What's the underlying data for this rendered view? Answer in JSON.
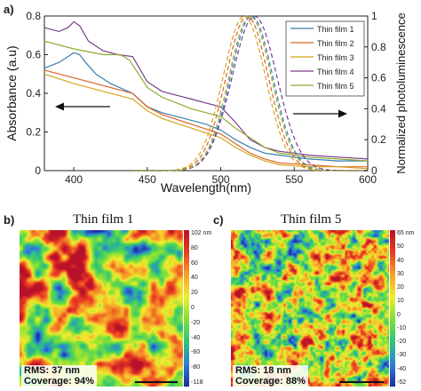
{
  "panel_a": {
    "label": "a)",
    "chart_data": {
      "type": "line",
      "xlabel": "Wavelength(nm)",
      "ylabel_left": "Absorbance (a.u)",
      "ylabel_right": "Normalized photoluminescence",
      "xlim": [
        380,
        600
      ],
      "ylim_left": [
        0,
        0.8
      ],
      "ylim_right": [
        0,
        1
      ],
      "x_ticks": [
        400,
        450,
        500,
        550,
        600
      ],
      "y_ticks_left": [
        0,
        0.2,
        0.4,
        0.6,
        0.8
      ],
      "y_ticks_right": [
        0,
        0.2,
        0.4,
        0.6,
        0.8,
        1
      ],
      "grid": false,
      "legend_position": "top-right",
      "absorbance_series": [
        {
          "name": "Thin film 1",
          "color": "#3a7fae",
          "x": [
            380,
            390,
            396,
            400,
            404,
            408,
            415,
            425,
            440,
            450,
            460,
            470,
            480,
            490,
            500,
            510,
            520,
            530,
            540,
            550,
            560,
            580,
            600
          ],
          "y": [
            0.53,
            0.56,
            0.59,
            0.61,
            0.6,
            0.56,
            0.5,
            0.45,
            0.4,
            0.33,
            0.3,
            0.28,
            0.26,
            0.24,
            0.21,
            0.16,
            0.12,
            0.09,
            0.08,
            0.07,
            0.06,
            0.05,
            0.05
          ]
        },
        {
          "name": "Thin film 2",
          "color": "#d9642a",
          "x": [
            380,
            400,
            420,
            440,
            450,
            460,
            480,
            500,
            510,
            520,
            530,
            540,
            560,
            580,
            600
          ],
          "y": [
            0.52,
            0.48,
            0.44,
            0.4,
            0.33,
            0.29,
            0.24,
            0.19,
            0.14,
            0.09,
            0.06,
            0.04,
            0.03,
            0.02,
            0.02
          ]
        },
        {
          "name": "Thin film 3",
          "color": "#d4a51c",
          "x": [
            380,
            400,
            420,
            440,
            450,
            460,
            480,
            500,
            510,
            520,
            530,
            540,
            560,
            580,
            600
          ],
          "y": [
            0.5,
            0.45,
            0.41,
            0.37,
            0.31,
            0.27,
            0.22,
            0.17,
            0.12,
            0.08,
            0.05,
            0.03,
            0.02,
            0.02,
            0.01
          ]
        },
        {
          "name": "Thin film 4",
          "color": "#7a3d8c",
          "x": [
            380,
            390,
            396,
            400,
            404,
            410,
            420,
            430,
            440,
            450,
            460,
            470,
            480,
            490,
            500,
            510,
            520,
            530,
            540,
            560,
            580,
            600
          ],
          "y": [
            0.74,
            0.72,
            0.74,
            0.77,
            0.75,
            0.67,
            0.62,
            0.6,
            0.59,
            0.46,
            0.41,
            0.39,
            0.37,
            0.35,
            0.33,
            0.25,
            0.16,
            0.12,
            0.1,
            0.08,
            0.07,
            0.06
          ]
        },
        {
          "name": "Thin film 5",
          "color": "#8eaa2e",
          "x": [
            380,
            400,
            420,
            426,
            432,
            438,
            445,
            450,
            460,
            480,
            500,
            510,
            520,
            530,
            540,
            560,
            580,
            600
          ],
          "y": [
            0.67,
            0.63,
            0.6,
            0.6,
            0.6,
            0.57,
            0.49,
            0.43,
            0.38,
            0.32,
            0.28,
            0.22,
            0.17,
            0.12,
            0.09,
            0.07,
            0.06,
            0.05
          ]
        }
      ],
      "photoluminescence_peaks": [
        {
          "name": "Thin film 1",
          "color": "#3a7fae",
          "peak_nm": 521,
          "fwhm_nm": 34
        },
        {
          "name": "Thin film 2",
          "color": "#d9642a",
          "peak_nm": 518,
          "fwhm_nm": 34
        },
        {
          "name": "Thin film 3",
          "color": "#d4a51c",
          "peak_nm": 516,
          "fwhm_nm": 34
        },
        {
          "name": "Thin film 4",
          "color": "#7a3d8c",
          "peak_nm": 523,
          "fwhm_nm": 36
        },
        {
          "name": "Thin film 5",
          "color": "#8eaa2e",
          "peak_nm": 520,
          "fwhm_nm": 34
        }
      ]
    }
  },
  "panel_b": {
    "label": "b)",
    "title": "Thin film 1",
    "colorbar_unit": "nm",
    "colorbar_ticks": [
      "102 nm",
      "80",
      "60",
      "40",
      "20",
      "0",
      "-20",
      "-40",
      "-60",
      "-80",
      "-118"
    ],
    "rms_text": "RMS: 37 nm",
    "coverage_text": "Coverage: 94%",
    "rms_nm": 37,
    "coverage_percent": 94
  },
  "panel_c": {
    "label": "c)",
    "title": "Thin film 5",
    "colorbar_unit": "nm",
    "colorbar_ticks": [
      "65 nm",
      "50",
      "40",
      "30",
      "20",
      "10",
      "0",
      "-10",
      "-20",
      "-30",
      "-40",
      "-52"
    ],
    "rms_text": "RMS: 18 nm",
    "coverage_text": "Coverage: 88%",
    "rms_nm": 18,
    "coverage_percent": 88
  },
  "colors": {
    "axis": "#222222",
    "arrow": "#111111",
    "colormap": [
      "#1e2ba0",
      "#2f7fd8",
      "#2fc47a",
      "#7ee03a",
      "#f1ec2e",
      "#f6a22a",
      "#ea3c22",
      "#b8122a"
    ]
  }
}
